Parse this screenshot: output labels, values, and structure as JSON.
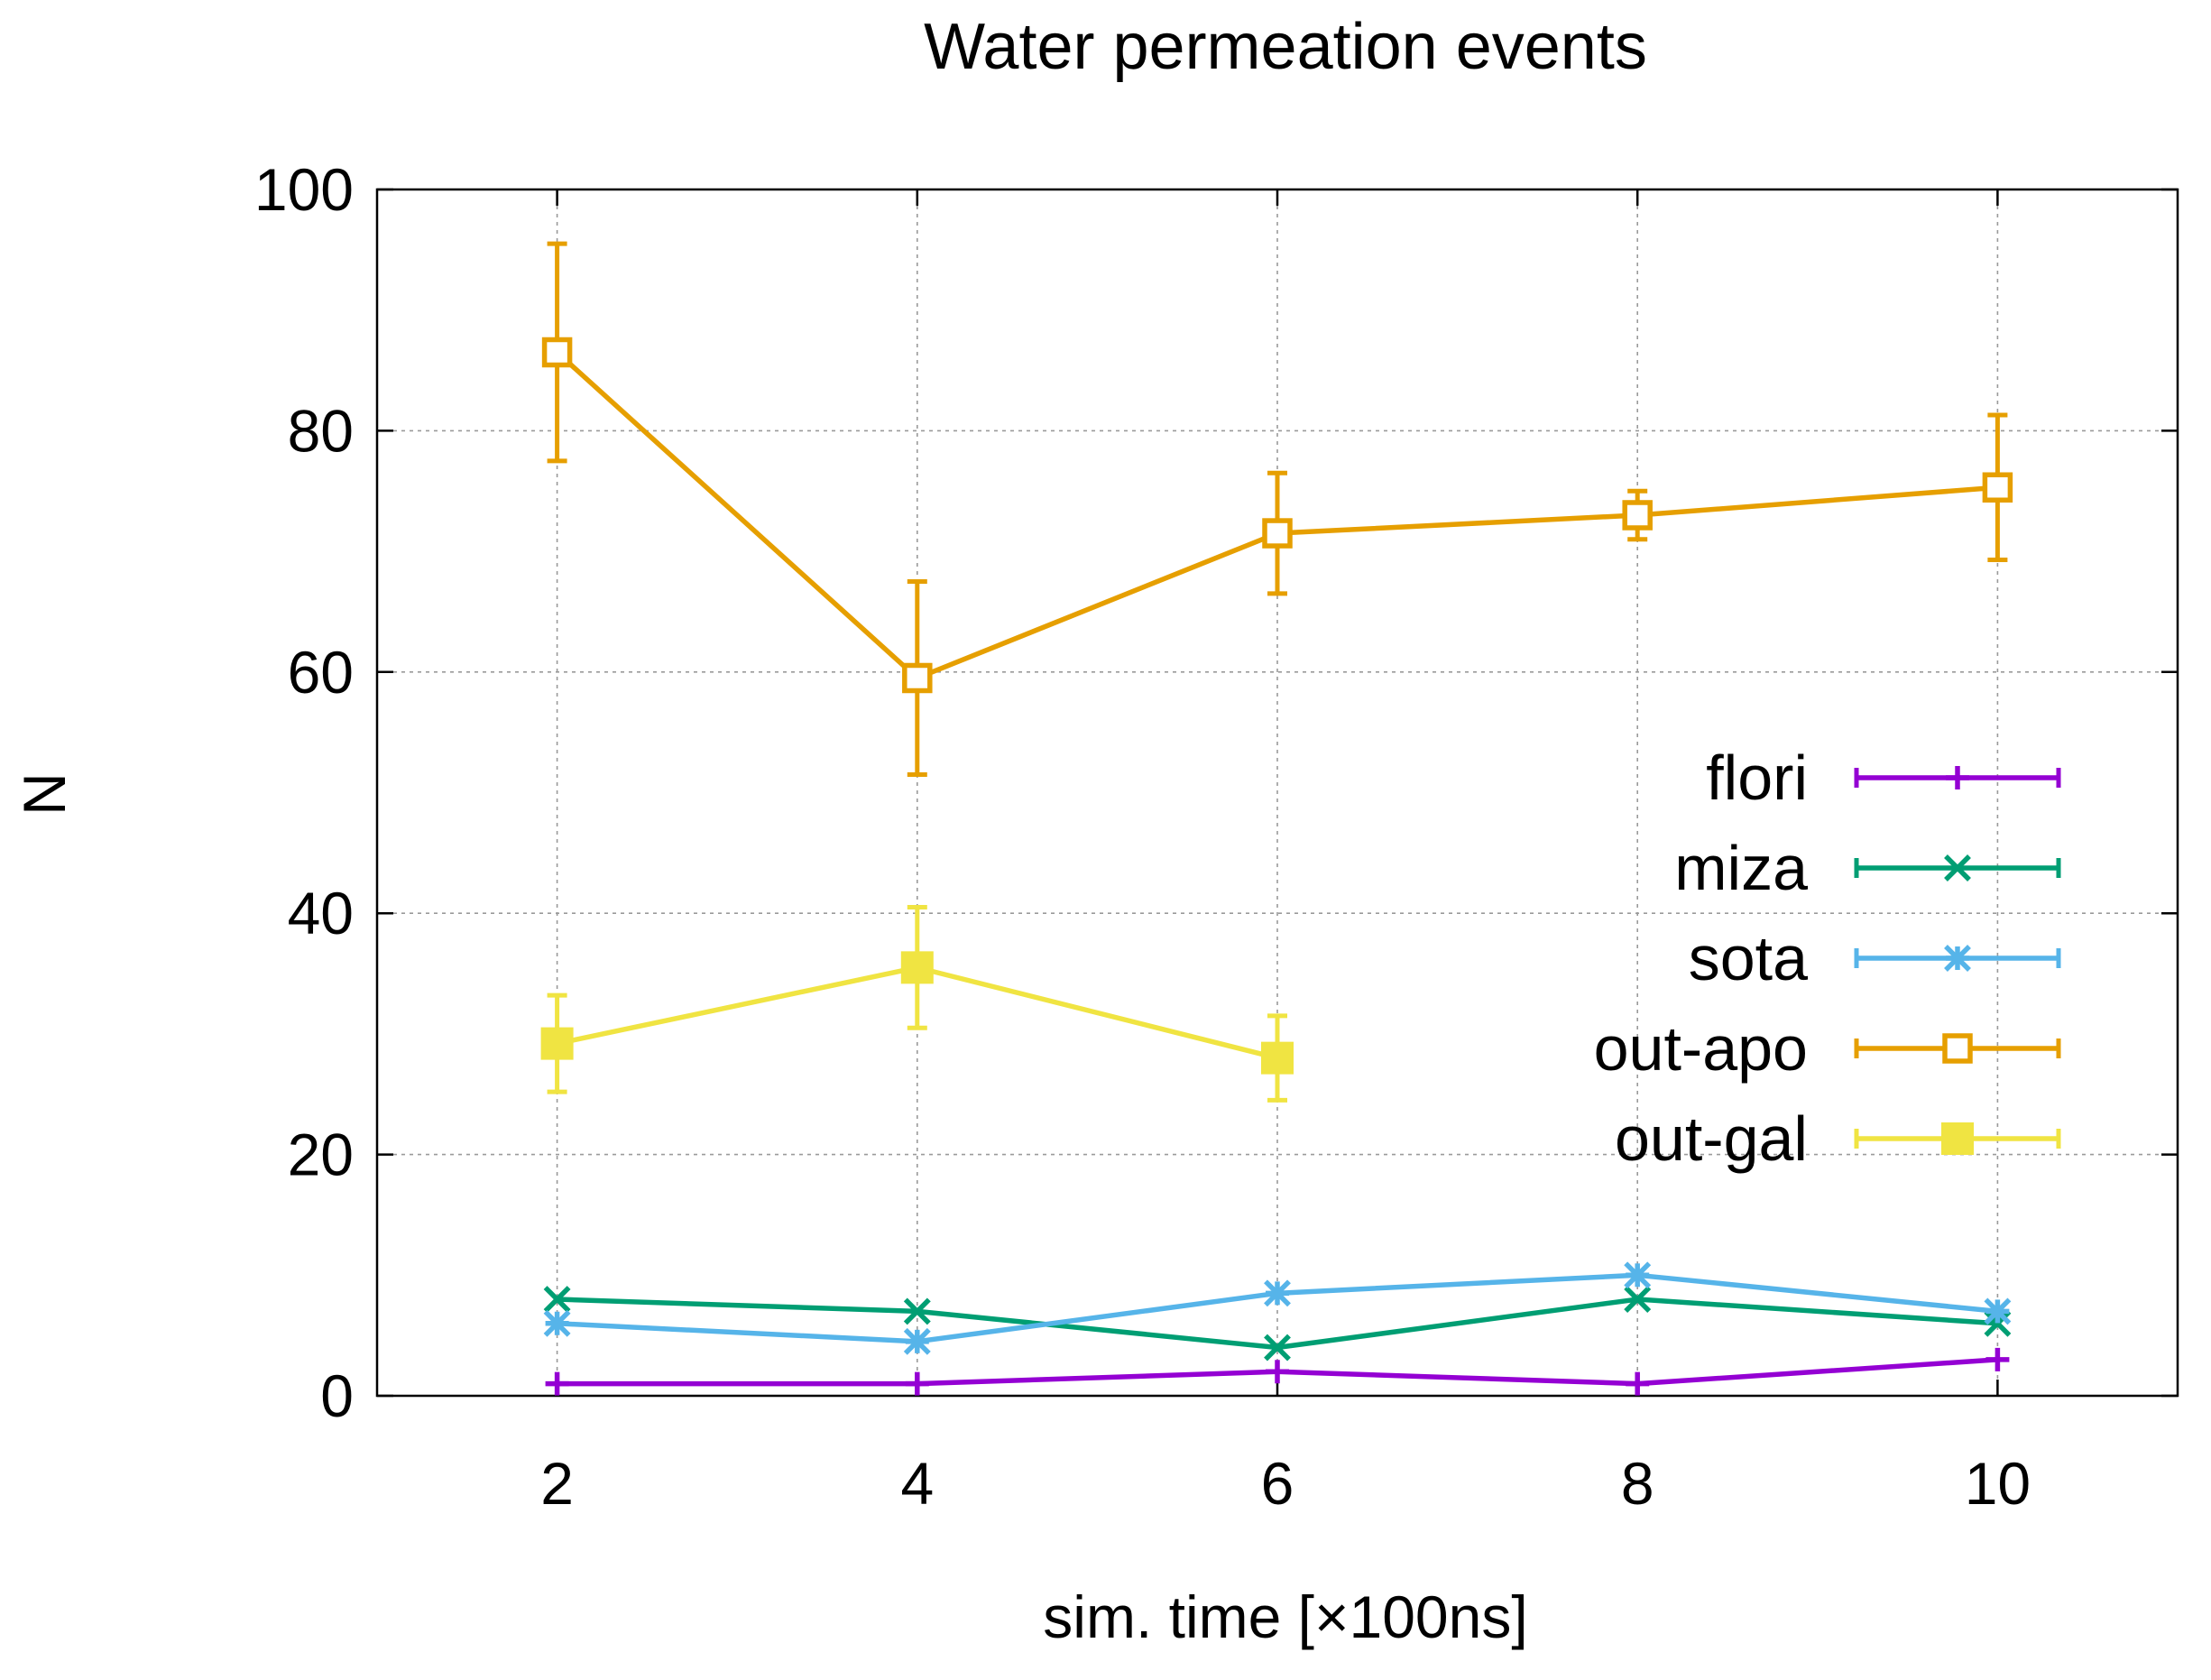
{
  "chart_data": {
    "type": "line",
    "title": "Water permeation events",
    "xlabel": "sim. time [×100ns]",
    "ylabel": "N",
    "xlim": [
      1,
      11
    ],
    "ylim": [
      0,
      100
    ],
    "xticks": [
      "2",
      "4",
      "6",
      "8",
      "10"
    ],
    "yticks": [
      "0",
      "20",
      "40",
      "60",
      "80",
      "100"
    ],
    "grid": true,
    "legend_position": "center-right",
    "series": [
      {
        "name": "flori",
        "color": "#9400d3",
        "marker": "plus",
        "x": [
          2,
          4,
          6,
          8,
          10
        ],
        "y": [
          1,
          1,
          2,
          1,
          3
        ],
        "err": [
          0,
          0,
          0,
          0,
          0
        ]
      },
      {
        "name": "miza",
        "color": "#009e73",
        "marker": "cross",
        "x": [
          2,
          4,
          6,
          8,
          10
        ],
        "y": [
          8,
          7,
          4,
          8,
          6
        ],
        "err": [
          0,
          0,
          0,
          0,
          0
        ]
      },
      {
        "name": "sota",
        "color": "#56b4e9",
        "marker": "star",
        "x": [
          2,
          4,
          6,
          8,
          10
        ],
        "y": [
          6,
          4.5,
          8.5,
          10,
          7
        ],
        "err": [
          0,
          0,
          0,
          0,
          0
        ]
      },
      {
        "name": "out-apo",
        "color": "#e69f00",
        "marker": "open-square",
        "x": [
          2,
          4,
          6,
          8,
          10
        ],
        "y": [
          86.5,
          59.5,
          71.5,
          73,
          75.3
        ],
        "err": [
          9,
          8,
          5,
          2,
          6
        ]
      },
      {
        "name": "out-gal",
        "color": "#f0e442",
        "marker": "filled-square",
        "x": [
          2,
          4,
          6
        ],
        "y": [
          29.2,
          35.5,
          28
        ],
        "err": [
          4,
          5,
          3.5
        ]
      }
    ]
  }
}
